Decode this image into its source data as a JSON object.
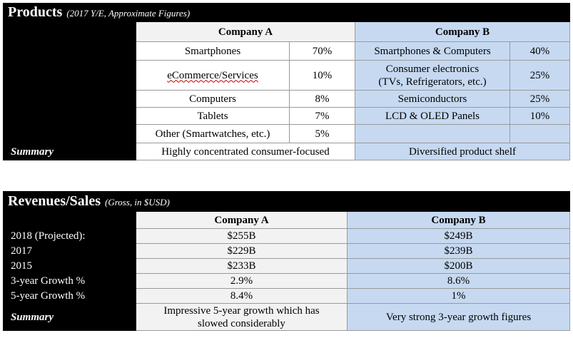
{
  "products": {
    "title": "Products",
    "subtitle": "(2017 Y/E, Approximate Figures)",
    "company_a_header": "Company A",
    "company_b_header": "Company B",
    "rows": [
      {
        "a_label": "Smartphones",
        "a_pct": "70%",
        "b_label": "Smartphones & Computers",
        "b_pct": "40%"
      },
      {
        "a_label": "eCommerce/Services",
        "a_pct": "10%",
        "b_label_line1": "Consumer electronics",
        "b_label_line2": "(TVs, Refrigerators, etc.)",
        "b_pct": "25%"
      },
      {
        "a_label": "Computers",
        "a_pct": "8%",
        "b_label": "Semiconductors",
        "b_pct": "25%"
      },
      {
        "a_label": "Tablets",
        "a_pct": "7%",
        "b_label": "LCD & OLED Panels",
        "b_pct": "10%"
      },
      {
        "a_label": "Other (Smartwatches, etc.)",
        "a_pct": "5%",
        "b_label": "",
        "b_pct": ""
      }
    ],
    "summary_label": "Summary",
    "summary_a": "Highly concentrated consumer-focused",
    "summary_b": "Diversified product shelf"
  },
  "revenues": {
    "title": "Revenues/Sales",
    "subtitle": "(Gross, in $USD)",
    "company_a_header": "Company A",
    "company_b_header": "Company B",
    "rows": [
      {
        "label": "2018 (Projected):",
        "a": "$255B",
        "b": "$249B"
      },
      {
        "label": "2017",
        "a": "$229B",
        "b": "$239B"
      },
      {
        "label": "2015",
        "a": "$233B",
        "b": "$200B"
      },
      {
        "label": "3-year Growth %",
        "a": "2.9%",
        "b": "8.6%"
      },
      {
        "label": "5-year Growth %",
        "a": "8.4%",
        "b": "1%"
      }
    ],
    "summary_label": "Summary",
    "summary_a_line1": "Impressive 5-year growth which has",
    "summary_a_line2": "slowed considerably",
    "summary_b": "Very strong 3-year growth figures"
  }
}
